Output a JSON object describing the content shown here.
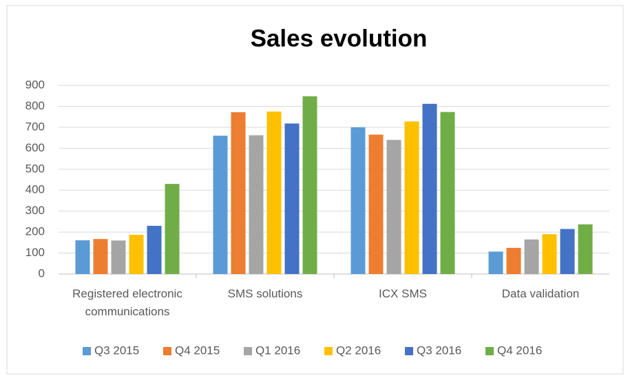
{
  "chart_data": {
    "type": "bar",
    "title": "Sales evolution",
    "categories": [
      "Registered electronic communications",
      "SMS solutions",
      "ICX SMS",
      "Data validation"
    ],
    "series": [
      {
        "name": "Q3 2015",
        "color": "#5b9bd5",
        "values": [
          161,
          660,
          700,
          107
        ]
      },
      {
        "name": "Q4 2015",
        "color": "#ed7d31",
        "values": [
          167,
          772,
          665,
          125
        ]
      },
      {
        "name": "Q1 2016",
        "color": "#a5a5a5",
        "values": [
          160,
          662,
          640,
          165
        ]
      },
      {
        "name": "Q2 2016",
        "color": "#ffc000",
        "values": [
          187,
          775,
          728,
          190
        ]
      },
      {
        "name": "Q3 2016",
        "color": "#4472c4",
        "values": [
          230,
          718,
          812,
          215
        ]
      },
      {
        "name": "Q4 2016",
        "color": "#70ad47",
        "values": [
          430,
          848,
          773,
          237
        ]
      }
    ],
    "ylim": [
      0,
      900
    ],
    "yticks": [
      0,
      100,
      200,
      300,
      400,
      500,
      600,
      700,
      800,
      900
    ],
    "grid": true,
    "legend": "bottom"
  }
}
